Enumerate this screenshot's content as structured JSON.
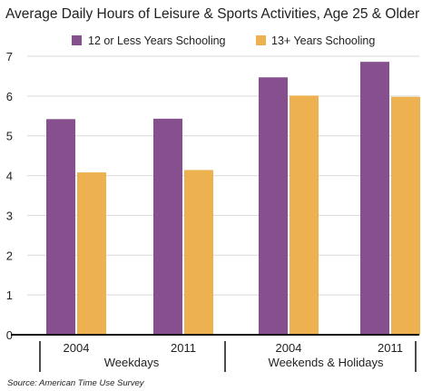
{
  "chart_data": {
    "type": "bar",
    "title": "Average Daily Hours of Leisure & Sports Activities, Age 25 & Older",
    "categories": [
      "2004",
      "2011",
      "2004",
      "2011"
    ],
    "groups": [
      {
        "label": "Weekdays",
        "category_indices": [
          0,
          1
        ]
      },
      {
        "label": "Weekends & Holidays",
        "category_indices": [
          2,
          3
        ]
      }
    ],
    "series": [
      {
        "name": "12 or Less Years Schooling",
        "color": "#86508e",
        "values": [
          5.42,
          5.43,
          6.47,
          6.86
        ]
      },
      {
        "name": "13+ Years Schooling",
        "color": "#edb14f",
        "values": [
          4.08,
          4.14,
          6.01,
          5.98
        ]
      }
    ],
    "ylim": [
      0,
      7
    ],
    "yticks": [
      "0",
      "1",
      "2",
      "3",
      "4",
      "5",
      "6",
      "7"
    ],
    "grid": true,
    "legend_position": "top",
    "xlabel": "",
    "ylabel": "",
    "source": "Source: American Time Use Survey"
  }
}
